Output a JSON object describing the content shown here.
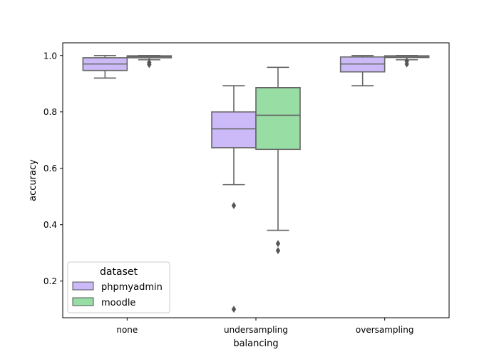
{
  "chart_data": {
    "type": "box",
    "xlabel": "balancing",
    "ylabel": "accuracy",
    "categories": [
      "none",
      "undersampling",
      "oversampling"
    ],
    "ylim": [
      0.07,
      1.045
    ],
    "yticks": [
      0.2,
      0.4,
      0.6,
      0.8,
      1.0
    ],
    "ytick_labels": [
      "0.2",
      "0.4",
      "0.6",
      "0.8",
      "1.0"
    ],
    "grid": false,
    "legend": {
      "title": "dataset",
      "placement": "lower-left"
    },
    "series": [
      {
        "name": "phpmyadmin",
        "color": "#cbbaf7",
        "boxes": [
          {
            "category": "none",
            "whislo": 0.92,
            "q1": 0.947,
            "med": 0.97,
            "q3": 0.992,
            "whishi": 1.0,
            "fliers": []
          },
          {
            "category": "undersampling",
            "whislo": 0.542,
            "q1": 0.673,
            "med": 0.74,
            "q3": 0.8,
            "whishi": 0.893,
            "fliers": [
              0.468,
              0.1
            ]
          },
          {
            "category": "oversampling",
            "whislo": 0.893,
            "q1": 0.942,
            "med": 0.97,
            "q3": 0.995,
            "whishi": 1.0,
            "fliers": []
          }
        ]
      },
      {
        "name": "moodle",
        "color": "#97dda4",
        "boxes": [
          {
            "category": "none",
            "whislo": 0.985,
            "q1": 0.992,
            "med": 0.996,
            "q3": 0.999,
            "whishi": 1.0,
            "fliers": [
              0.975,
              0.968
            ]
          },
          {
            "category": "undersampling",
            "whislo": 0.38,
            "q1": 0.667,
            "med": 0.788,
            "q3": 0.886,
            "whishi": 0.958,
            "fliers": [
              0.333,
              0.308
            ]
          },
          {
            "category": "oversampling",
            "whislo": 0.985,
            "q1": 0.993,
            "med": 0.997,
            "q3": 0.999,
            "whishi": 1.0,
            "fliers": [
              0.98,
              0.97
            ]
          }
        ]
      }
    ]
  }
}
